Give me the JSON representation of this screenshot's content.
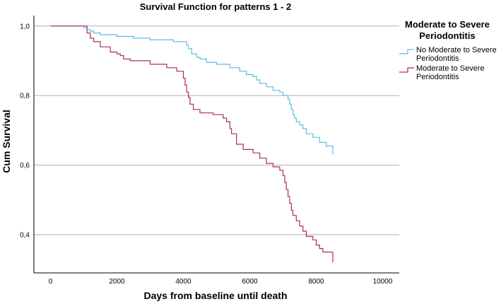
{
  "chart_data": {
    "type": "line",
    "step": true,
    "title": "Survival Function for patterns 1 - 2",
    "xlabel": "Days from baseline until death",
    "ylabel": "Cum Survival",
    "xlim": [
      -500,
      10500
    ],
    "ylim": [
      0.29,
      1.03
    ],
    "xticks": [
      0,
      2000,
      4000,
      6000,
      8000,
      10000
    ],
    "xtick_labels": [
      "0",
      "2000",
      "4000",
      "6000",
      "8000",
      "10000"
    ],
    "yticks": [
      0.4,
      0.6,
      0.8,
      1.0
    ],
    "ytick_labels": [
      "0,4",
      "0,6",
      "0,8",
      "1,0"
    ],
    "grid": "horizontal",
    "legend": {
      "title_line1": "Moderate to Severe",
      "title_line2": "Periodontitis",
      "placement": "right"
    },
    "series": [
      {
        "name": "No Moderate to Severe Periodontitis",
        "label_line1": "No Moderate to Severe",
        "label_line2": "Periodontitis",
        "color": "#5bbde4",
        "x": [
          0,
          1000,
          1100,
          1200,
          1300,
          1500,
          2000,
          2500,
          3000,
          3700,
          4100,
          4150,
          4250,
          4400,
          4500,
          4700,
          5000,
          5400,
          5700,
          5900,
          6100,
          6200,
          6300,
          6500,
          6700,
          6900,
          7000,
          7150,
          7200,
          7250,
          7300,
          7350,
          7400,
          7500,
          7600,
          7700,
          7900,
          8100,
          8300,
          8500
        ],
        "y": [
          1.0,
          0.995,
          0.99,
          0.985,
          0.98,
          0.975,
          0.97,
          0.965,
          0.96,
          0.955,
          0.945,
          0.935,
          0.92,
          0.91,
          0.905,
          0.895,
          0.89,
          0.88,
          0.87,
          0.86,
          0.855,
          0.845,
          0.835,
          0.825,
          0.815,
          0.81,
          0.8,
          0.79,
          0.775,
          0.76,
          0.745,
          0.735,
          0.725,
          0.715,
          0.705,
          0.69,
          0.68,
          0.665,
          0.655,
          0.63
        ]
      },
      {
        "name": "Moderate to Severe Periodontitis",
        "label_line1": "Moderate to Severe",
        "label_line2": "Periodontitis",
        "color": "#a8305a",
        "x": [
          0,
          1100,
          1200,
          1300,
          1500,
          1800,
          2000,
          2100,
          2200,
          2400,
          3000,
          3500,
          3800,
          4000,
          4050,
          4100,
          4150,
          4200,
          4300,
          4500,
          4900,
          5200,
          5300,
          5400,
          5450,
          5600,
          5800,
          6100,
          6300,
          6500,
          6700,
          6900,
          7000,
          7050,
          7100,
          7150,
          7200,
          7250,
          7300,
          7400,
          7500,
          7600,
          7700,
          7900,
          8000,
          8100,
          8200,
          8500
        ],
        "y": [
          1.0,
          0.98,
          0.965,
          0.955,
          0.94,
          0.925,
          0.92,
          0.915,
          0.905,
          0.9,
          0.89,
          0.88,
          0.87,
          0.85,
          0.83,
          0.81,
          0.795,
          0.775,
          0.76,
          0.75,
          0.745,
          0.735,
          0.725,
          0.705,
          0.69,
          0.66,
          0.645,
          0.635,
          0.62,
          0.605,
          0.595,
          0.585,
          0.57,
          0.55,
          0.53,
          0.51,
          0.49,
          0.47,
          0.455,
          0.44,
          0.425,
          0.41,
          0.395,
          0.385,
          0.37,
          0.36,
          0.35,
          0.32
        ]
      }
    ]
  }
}
